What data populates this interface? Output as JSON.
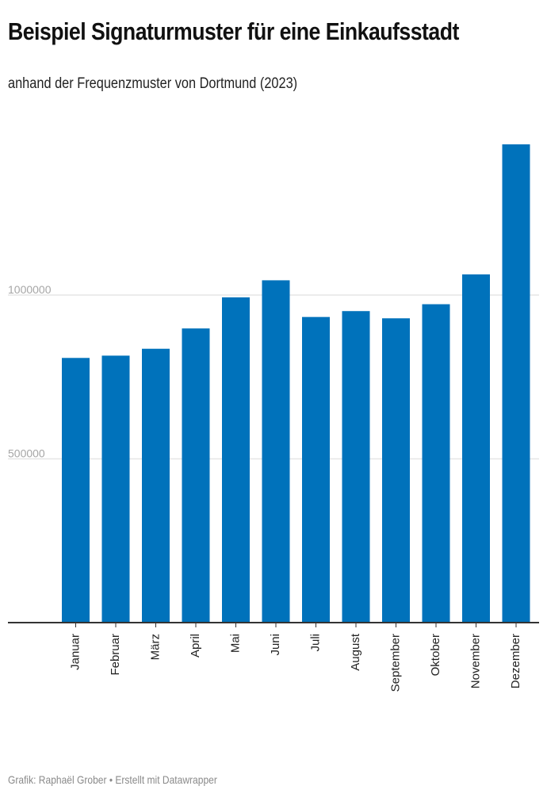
{
  "header": {
    "title": "Beispiel Signaturmuster für eine Einkaufsstadt",
    "subtitle": "anhand der Frequenzmuster von Dortmund (2023)"
  },
  "footer": {
    "credit": "Grafik: Raphaël Grober • Erstellt mit Datawrapper"
  },
  "colors": {
    "bar": "#0072bb",
    "grid": "#e6e6e6",
    "axis": "#333333",
    "tick_label": "#a6a6a6",
    "category_label": "#222222"
  },
  "chart_data": {
    "type": "bar",
    "categories": [
      "Januar",
      "Februar",
      "März",
      "April",
      "Mai",
      "Juni",
      "Juli",
      "August",
      "September",
      "Oktober",
      "November",
      "Dezember"
    ],
    "values": [
      808000,
      815000,
      836000,
      898000,
      993000,
      1045000,
      933000,
      951000,
      929000,
      972000,
      1063000,
      1460000
    ],
    "yticks": [
      500000,
      1000000
    ],
    "ytick_labels": [
      "500000",
      "1000000"
    ],
    "ylim": [
      0,
      1460000
    ],
    "grid": true,
    "legend": "none",
    "xlabel": "",
    "ylabel": ""
  }
}
